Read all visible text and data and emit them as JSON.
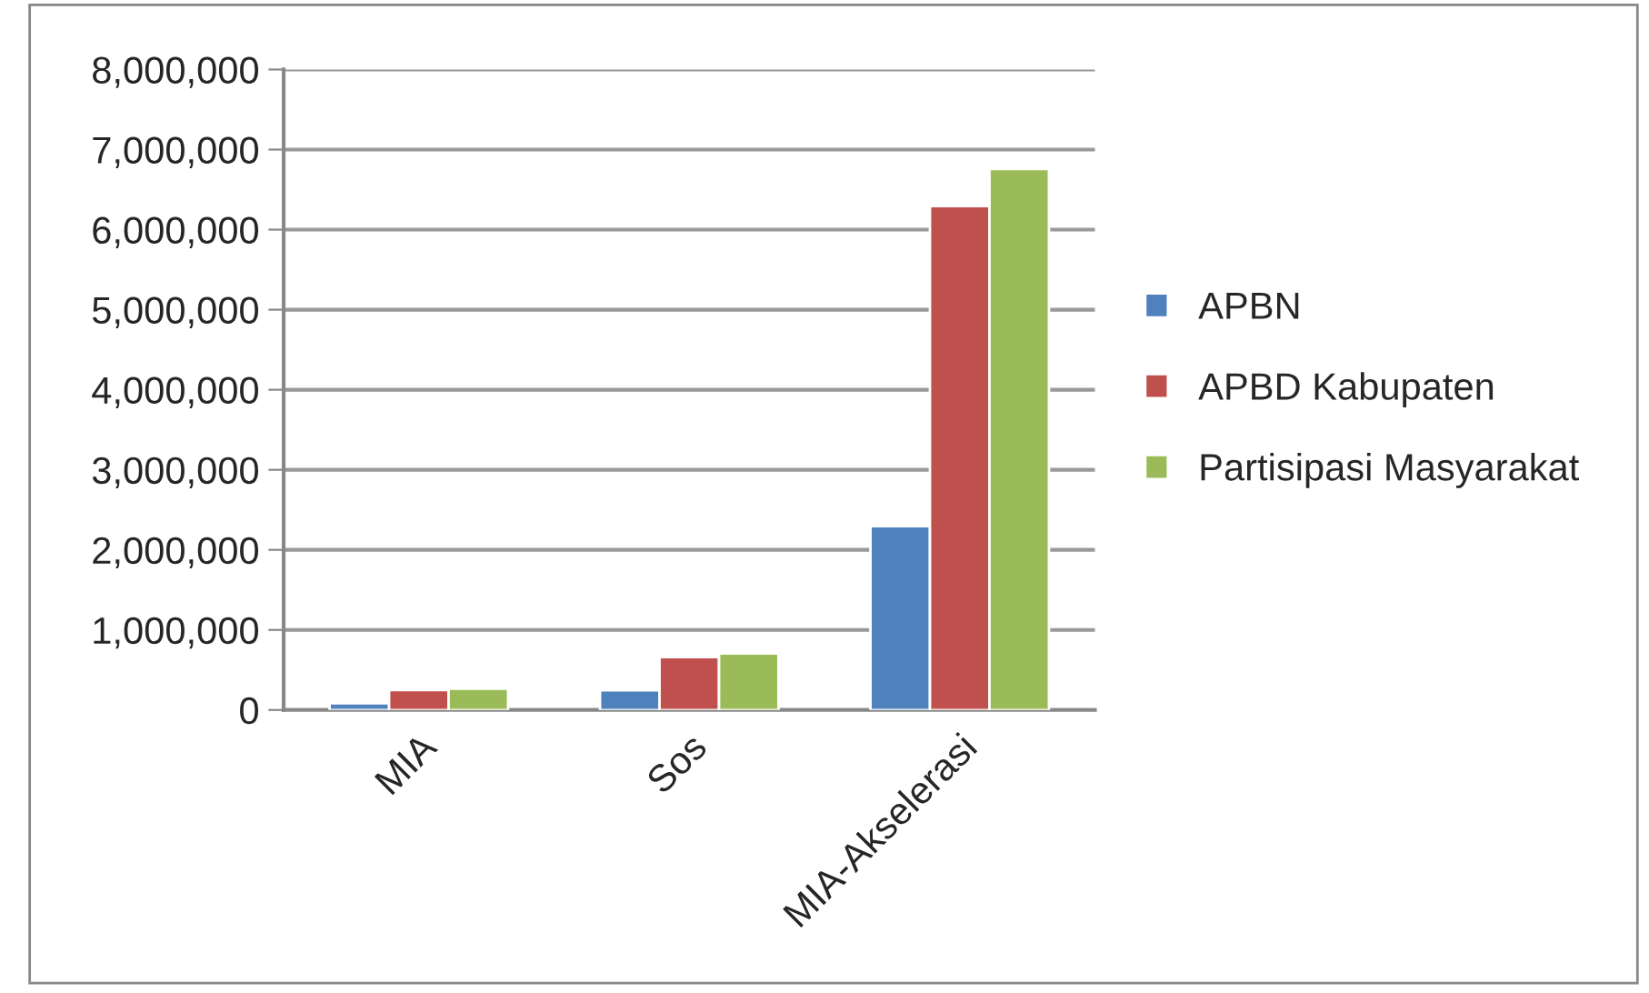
{
  "chart_data": {
    "type": "bar",
    "categories": [
      "MIA",
      "Sos",
      "MIA-Akselerasi"
    ],
    "series": [
      {
        "name": "APBN",
        "color": "#4f81bd",
        "values": [
          85000,
          245000,
          2295000
        ]
      },
      {
        "name": "APBD Kabupaten",
        "color": "#c0504d",
        "values": [
          250000,
          660000,
          6295000
        ]
      },
      {
        "name": "Partisipasi Masyarakat",
        "color": "#9bbb59",
        "values": [
          265000,
          705000,
          6757000
        ]
      }
    ],
    "ylim": [
      0,
      8000000
    ],
    "yticks": [
      {
        "value": 0,
        "label": "0"
      },
      {
        "value": 1000000,
        "label": "1,000,000"
      },
      {
        "value": 2000000,
        "label": "2,000,000"
      },
      {
        "value": 3000000,
        "label": "3,000,000"
      },
      {
        "value": 4000000,
        "label": "4,000,000"
      },
      {
        "value": 5000000,
        "label": "5,000,000"
      },
      {
        "value": 6000000,
        "label": "6,000,000"
      },
      {
        "value": 7000000,
        "label": "7,000,000"
      },
      {
        "value": 8000000,
        "label": "8,000,000"
      }
    ],
    "grid": "y",
    "legend": "right"
  }
}
